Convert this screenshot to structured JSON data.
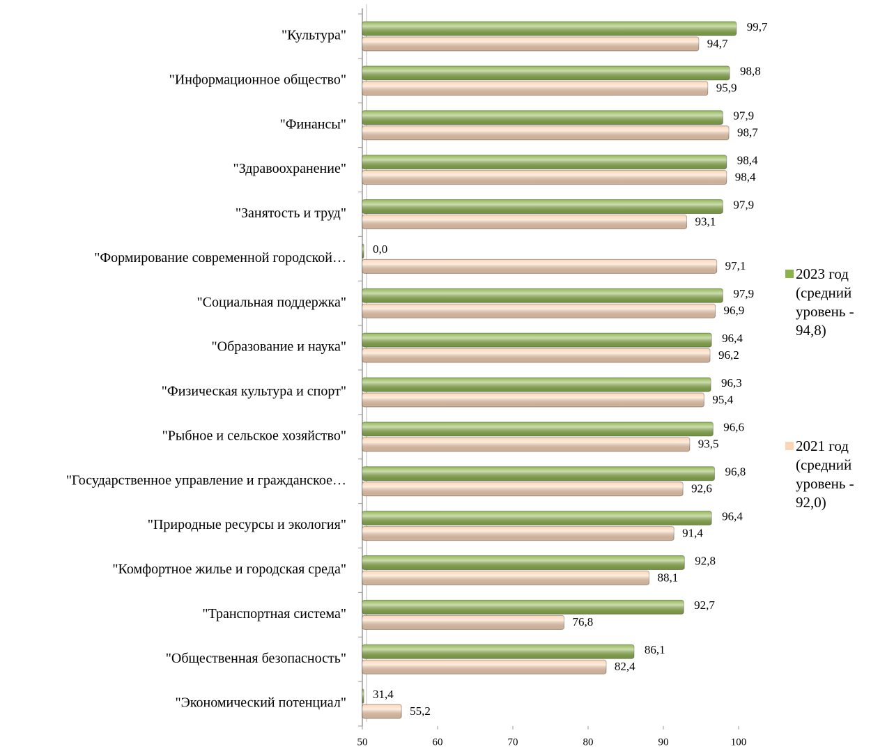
{
  "chart_data": {
    "type": "bar",
    "orientation": "horizontal",
    "categories": [
      "\"Культура\"",
      "\"Информационное общество\"",
      "\"Финансы\"",
      "\"Здравоохранение\"",
      "\"Занятость и труд\"",
      "\"Формирование современной городской…",
      "\"Социальная поддержка\"",
      "\"Образование и наука\"",
      "\"Физическая культура и спорт\"",
      "\"Рыбное и сельское хозяйство\"",
      "\"Государственное управление и гражданское…",
      "\"Природные ресурсы и экология\"",
      "\"Комфортное жилье и городская среда\"",
      "\"Транспортная система\"",
      "\"Общественная безопасность\"",
      "\"Экономический потенциал\""
    ],
    "series": [
      {
        "name": "2023 год (средний уровень - 94,8)",
        "color": "#8cb34a",
        "values": [
          99.7,
          98.8,
          97.9,
          98.4,
          97.9,
          0.0,
          97.9,
          96.4,
          96.3,
          96.6,
          96.8,
          96.4,
          92.8,
          92.7,
          86.1,
          31.4
        ],
        "value_labels": [
          "99,7",
          "98,8",
          "97,9",
          "98,4",
          "97,9",
          "0,0",
          "97,9",
          "96,4",
          "96,3",
          "96,6",
          "96,8",
          "96,4",
          "92,8",
          "92,7",
          "86,1",
          "31,4"
        ]
      },
      {
        "name": "2021 год (средний уровень - 92,0)",
        "color": "#fcd5b5",
        "values": [
          94.7,
          95.9,
          98.7,
          98.4,
          93.1,
          97.1,
          96.9,
          96.2,
          95.4,
          93.5,
          92.6,
          91.4,
          88.1,
          76.8,
          82.4,
          55.2
        ],
        "value_labels": [
          "94,7",
          "95,9",
          "98,7",
          "98,4",
          "93,1",
          "97,1",
          "96,9",
          "96,2",
          "95,4",
          "93,5",
          "92,6",
          "91,4",
          "88,1",
          "76,8",
          "82,4",
          "55,2"
        ]
      }
    ],
    "xlim": [
      50,
      100
    ],
    "xticks": [
      50,
      60,
      70,
      80,
      90,
      100
    ],
    "grid": false,
    "legend": "right"
  }
}
